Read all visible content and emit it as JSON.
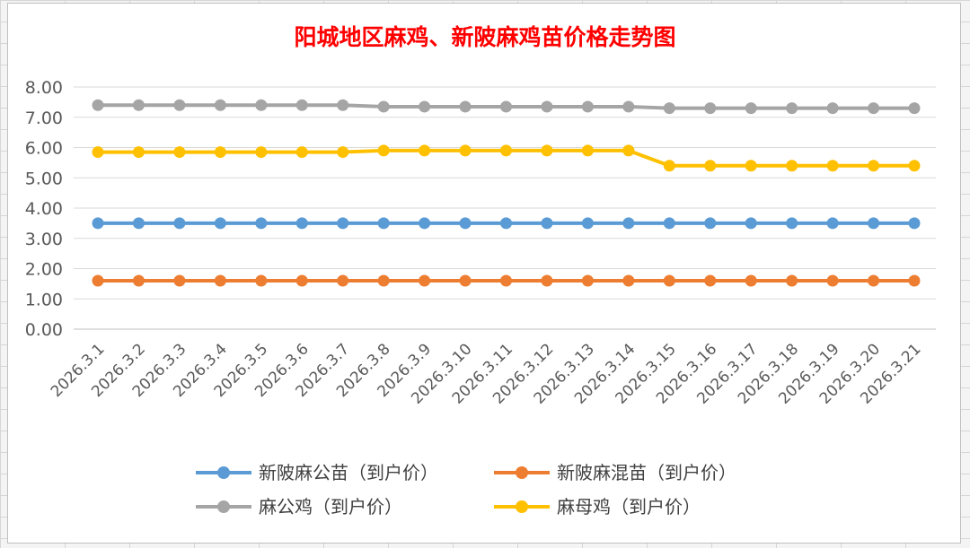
{
  "chart_data": {
    "type": "line",
    "title": "阳城地区麻鸡、新陂麻鸡苗价格走势图",
    "xlabel": "",
    "ylabel": "",
    "ylim": [
      0,
      8
    ],
    "yticks": [
      "0.00",
      "1.00",
      "2.00",
      "3.00",
      "4.00",
      "5.00",
      "6.00",
      "7.00",
      "8.00"
    ],
    "grid": true,
    "legend_position": "bottom",
    "categories": [
      "2026.3.1",
      "2026.3.2",
      "2026.3.3",
      "2026.3.4",
      "2026.3.5",
      "2026.3.6",
      "2026.3.7",
      "2026.3.8",
      "2026.3.9",
      "2026.3.10",
      "2026.3.11",
      "2026.3.12",
      "2026.3.13",
      "2026.3.14",
      "2026.3.15",
      "2026.3.16",
      "2026.3.17",
      "2026.3.18",
      "2026.3.19",
      "2026.3.20",
      "2026.3.21"
    ],
    "series": [
      {
        "name": "新陂麻公苗（到户价）",
        "color": "#5b9bd5",
        "values": [
          3.5,
          3.5,
          3.5,
          3.5,
          3.5,
          3.5,
          3.5,
          3.5,
          3.5,
          3.5,
          3.5,
          3.5,
          3.5,
          3.5,
          3.5,
          3.5,
          3.5,
          3.5,
          3.5,
          3.5,
          3.5
        ]
      },
      {
        "name": "新陂麻混苗（到户价）",
        "color": "#ed7d31",
        "values": [
          1.6,
          1.6,
          1.6,
          1.6,
          1.6,
          1.6,
          1.6,
          1.6,
          1.6,
          1.6,
          1.6,
          1.6,
          1.6,
          1.6,
          1.6,
          1.6,
          1.6,
          1.6,
          1.6,
          1.6,
          1.6
        ]
      },
      {
        "name": "麻公鸡（到户价）",
        "color": "#a5a5a5",
        "values": [
          7.4,
          7.4,
          7.4,
          7.4,
          7.4,
          7.4,
          7.4,
          7.35,
          7.35,
          7.35,
          7.35,
          7.35,
          7.35,
          7.35,
          7.3,
          7.3,
          7.3,
          7.3,
          7.3,
          7.3,
          7.3
        ]
      },
      {
        "name": "麻母鸡（到户价）",
        "color": "#ffc000",
        "values": [
          5.85,
          5.85,
          5.85,
          5.85,
          5.85,
          5.85,
          5.85,
          5.9,
          5.9,
          5.9,
          5.9,
          5.9,
          5.9,
          5.9,
          5.4,
          5.4,
          5.4,
          5.4,
          5.4,
          5.4,
          5.4
        ]
      }
    ]
  }
}
